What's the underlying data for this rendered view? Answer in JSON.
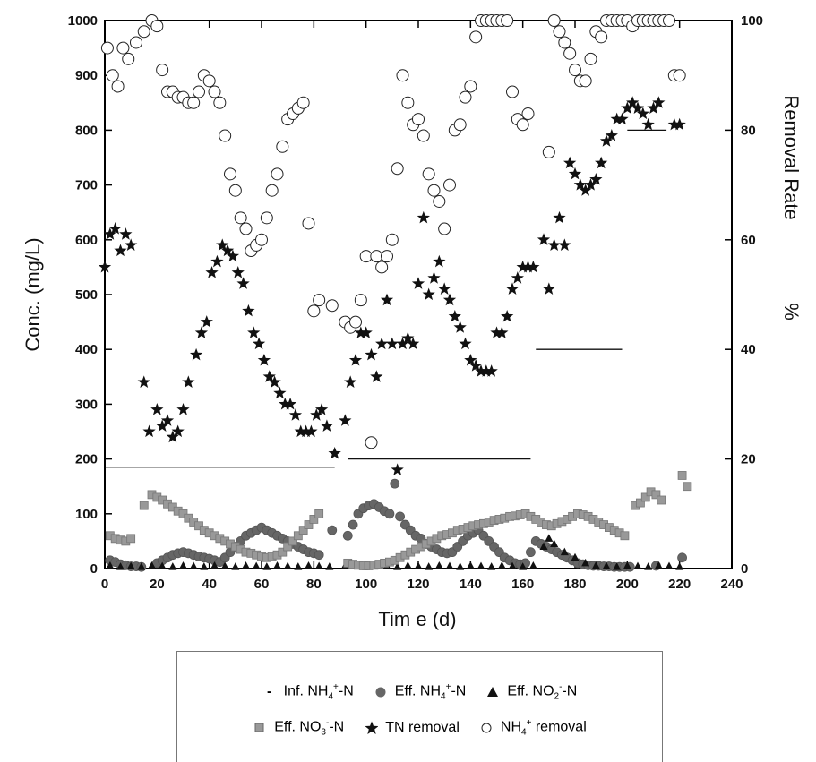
{
  "chart_data": {
    "type": "scatter",
    "xlabel": "Tim e (d)",
    "ylabel_left": "Conc. (mg/L)",
    "ylabel_right_main": "Removal Rate",
    "ylabel_right_unit": "%",
    "xlim": [
      0,
      240
    ],
    "ylim_left": [
      0,
      1000
    ],
    "ylim_right": [
      0,
      100
    ],
    "x_ticks": [
      "0",
      "20",
      "40",
      "60",
      "80",
      "100",
      "120",
      "140",
      "160",
      "180",
      "200",
      "220",
      "240"
    ],
    "y_ticks_left": [
      "0",
      "100",
      "200",
      "300",
      "400",
      "500",
      "600",
      "700",
      "800",
      "900",
      "1000"
    ],
    "y_ticks_right": [
      "0",
      "20",
      "40",
      "60",
      "80",
      "100"
    ],
    "legend": {
      "row1": [
        {
          "symbol": "-",
          "label_pre": "Inf. NH",
          "sub": "4",
          "sup": "+",
          "label_post": "-N"
        },
        {
          "symbol": "●",
          "label_pre": "Eff. NH",
          "sub": "4",
          "sup": "+",
          "label_post": "-N"
        },
        {
          "symbol": "▲",
          "label_pre": "Eff. NO",
          "sub": "2",
          "sup": "-",
          "label_post": "-N"
        }
      ],
      "row2": [
        {
          "symbol": "■",
          "label_pre": "Eff. NO",
          "sub": "3",
          "sup": "-",
          "label_post": "-N"
        },
        {
          "symbol": "★",
          "label_pre": "TN removal",
          "sub": "",
          "sup": "",
          "label_post": ""
        },
        {
          "symbol": "○",
          "label_pre": "NH",
          "sub": "4",
          "sup": "+",
          "label_post": " removal"
        }
      ]
    },
    "series": [
      {
        "name": "Inf. NH4+-N",
        "axis": "left",
        "style": "segments",
        "segments": [
          {
            "x0": 0,
            "x1": 88,
            "y": 185
          },
          {
            "x0": 93,
            "x1": 163,
            "y": 200
          },
          {
            "x0": 165,
            "x1": 198,
            "y": 400
          },
          {
            "x0": 200,
            "x1": 215,
            "y": 800
          }
        ]
      },
      {
        "name": "Eff. NH4+-N",
        "axis": "left",
        "style": "filled-circle",
        "x": [
          2,
          4,
          6,
          8,
          10,
          12,
          14,
          20,
          22,
          24,
          26,
          28,
          30,
          32,
          34,
          36,
          38,
          40,
          42,
          44,
          46,
          48,
          50,
          52,
          54,
          56,
          58,
          60,
          62,
          64,
          66,
          68,
          70,
          72,
          74,
          76,
          78,
          80,
          82,
          87,
          93,
          95,
          97,
          99,
          101,
          103,
          105,
          107,
          109,
          111,
          113,
          115,
          117,
          119,
          121,
          123,
          125,
          127,
          129,
          131,
          133,
          135,
          137,
          139,
          141,
          143,
          145,
          147,
          149,
          151,
          153,
          155,
          157,
          159,
          161,
          163,
          165,
          167,
          169,
          171,
          173,
          175,
          177,
          179,
          181,
          183,
          185,
          187,
          189,
          191,
          193,
          195,
          197,
          199,
          201,
          211,
          221
        ],
        "y": [
          15,
          12,
          8,
          6,
          4,
          4,
          3,
          10,
          15,
          20,
          25,
          28,
          30,
          28,
          25,
          22,
          20,
          18,
          15,
          12,
          20,
          30,
          40,
          50,
          60,
          65,
          70,
          75,
          70,
          65,
          60,
          55,
          50,
          45,
          40,
          35,
          30,
          28,
          25,
          70,
          60,
          80,
          100,
          110,
          115,
          118,
          112,
          105,
          100,
          155,
          95,
          80,
          70,
          60,
          55,
          45,
          40,
          35,
          30,
          28,
          30,
          40,
          50,
          60,
          65,
          70,
          60,
          50,
          40,
          30,
          20,
          15,
          10,
          8,
          10,
          30,
          50,
          45,
          40,
          35,
          30,
          25,
          20,
          15,
          10,
          8,
          6,
          5,
          5,
          4,
          4,
          3,
          3,
          3,
          3,
          5,
          20
        ]
      },
      {
        "name": "Eff. NO2--N",
        "axis": "left",
        "style": "filled-triangle",
        "x": [
          2,
          6,
          10,
          14,
          18,
          22,
          26,
          30,
          34,
          38,
          42,
          46,
          50,
          54,
          58,
          62,
          66,
          70,
          74,
          78,
          82,
          86,
          92,
          96,
          100,
          104,
          108,
          112,
          116,
          120,
          124,
          128,
          132,
          136,
          140,
          144,
          148,
          152,
          156,
          160,
          164,
          168,
          170,
          172,
          176,
          180,
          184,
          188,
          192,
          196,
          200,
          204,
          208,
          212,
          216,
          220
        ],
        "y": [
          5,
          3,
          4,
          3,
          5,
          4,
          3,
          5,
          4,
          3,
          5,
          4,
          3,
          5,
          4,
          3,
          5,
          4,
          3,
          5,
          4,
          3,
          5,
          4,
          3,
          5,
          4,
          3,
          5,
          4,
          3,
          5,
          4,
          3,
          5,
          4,
          3,
          5,
          4,
          3,
          5,
          40,
          55,
          45,
          30,
          20,
          10,
          5,
          4,
          3,
          5,
          4,
          3,
          5,
          4,
          3
        ]
      },
      {
        "name": "Eff. NO3--N",
        "axis": "left",
        "style": "filled-square",
        "x": [
          2,
          4,
          6,
          8,
          10,
          15,
          18,
          20,
          22,
          24,
          26,
          28,
          30,
          32,
          34,
          36,
          38,
          40,
          42,
          44,
          46,
          48,
          50,
          52,
          54,
          56,
          58,
          60,
          62,
          64,
          66,
          68,
          70,
          72,
          74,
          76,
          78,
          80,
          82,
          93,
          95,
          97,
          99,
          101,
          103,
          105,
          107,
          109,
          111,
          113,
          115,
          117,
          119,
          121,
          123,
          125,
          127,
          129,
          131,
          133,
          135,
          137,
          139,
          141,
          143,
          145,
          147,
          149,
          151,
          153,
          155,
          157,
          159,
          161,
          163,
          165,
          167,
          169,
          171,
          173,
          175,
          177,
          179,
          181,
          183,
          185,
          187,
          189,
          191,
          193,
          195,
          197,
          199,
          203,
          205,
          207,
          209,
          211,
          213,
          221,
          223
        ],
        "y": [
          60,
          55,
          52,
          50,
          55,
          115,
          135,
          130,
          125,
          118,
          112,
          105,
          100,
          92,
          85,
          78,
          70,
          65,
          60,
          55,
          50,
          45,
          40,
          35,
          30,
          28,
          25,
          22,
          20,
          22,
          25,
          30,
          40,
          50,
          60,
          70,
          80,
          90,
          100,
          10,
          8,
          6,
          5,
          5,
          6,
          8,
          10,
          12,
          15,
          20,
          25,
          30,
          35,
          40,
          45,
          50,
          55,
          60,
          62,
          65,
          70,
          72,
          75,
          78,
          80,
          82,
          85,
          88,
          90,
          92,
          95,
          96,
          98,
          100,
          95,
          90,
          85,
          80,
          78,
          82,
          86,
          90,
          95,
          100,
          98,
          95,
          90,
          85,
          80,
          75,
          70,
          65,
          60,
          115,
          120,
          130,
          140,
          135,
          125,
          170,
          150
        ]
      },
      {
        "name": "TN removal",
        "axis": "right",
        "style": "star",
        "x": [
          0,
          2,
          4,
          6,
          8,
          10,
          15,
          17,
          20,
          22,
          24,
          26,
          28,
          30,
          32,
          35,
          37,
          39,
          41,
          43,
          45,
          47,
          49,
          51,
          53,
          55,
          57,
          59,
          61,
          63,
          65,
          67,
          69,
          71,
          73,
          75,
          77,
          79,
          81,
          83,
          85,
          88,
          92,
          94,
          96,
          98,
          100,
          102,
          104,
          106,
          108,
          110,
          112,
          114,
          116,
          118,
          120,
          122,
          124,
          126,
          128,
          130,
          132,
          134,
          136,
          138,
          140,
          142,
          144,
          146,
          148,
          150,
          152,
          154,
          156,
          158,
          160,
          162,
          164,
          168,
          170,
          172,
          174,
          176,
          178,
          180,
          182,
          184,
          186,
          188,
          190,
          192,
          194,
          196,
          198,
          200,
          202,
          204,
          206,
          208,
          210,
          212,
          218,
          220
        ],
        "y": [
          55,
          61,
          62,
          58,
          61,
          59,
          34,
          25,
          29,
          26,
          27,
          24,
          25,
          29,
          34,
          39,
          43,
          45,
          54,
          56,
          59,
          58,
          57,
          54,
          52,
          47,
          43,
          41,
          38,
          35,
          34,
          32,
          30,
          30,
          28,
          25,
          25,
          25,
          28,
          29,
          26,
          21,
          27,
          34,
          38,
          43,
          43,
          39,
          35,
          41,
          49,
          41,
          18,
          41,
          42,
          41,
          52,
          64,
          50,
          53,
          56,
          51,
          49,
          46,
          44,
          41,
          38,
          37,
          36,
          36,
          36,
          43,
          43,
          46,
          51,
          53,
          55,
          55,
          55,
          60,
          51,
          59,
          64,
          59,
          74,
          72,
          70,
          69,
          70,
          71,
          74,
          78,
          79,
          82,
          82,
          84,
          85,
          84,
          83,
          81,
          84,
          85,
          81,
          81
        ]
      },
      {
        "name": "NH4+ removal",
        "axis": "right",
        "style": "open-circle",
        "x": [
          1,
          3,
          5,
          7,
          9,
          12,
          15,
          18,
          20,
          22,
          24,
          26,
          28,
          30,
          32,
          34,
          36,
          38,
          40,
          42,
          44,
          46,
          48,
          50,
          52,
          54,
          56,
          58,
          60,
          62,
          64,
          66,
          68,
          70,
          72,
          74,
          76,
          78,
          80,
          82,
          87,
          92,
          94,
          96,
          98,
          100,
          102,
          104,
          106,
          108,
          110,
          112,
          114,
          116,
          118,
          120,
          122,
          124,
          126,
          128,
          130,
          132,
          134,
          136,
          138,
          140,
          142,
          144,
          146,
          148,
          150,
          152,
          154,
          156,
          158,
          160,
          162,
          170,
          172,
          174,
          176,
          178,
          180,
          182,
          184,
          186,
          188,
          190,
          192,
          194,
          196,
          198,
          200,
          202,
          204,
          206,
          208,
          210,
          212,
          214,
          216,
          218,
          220
        ],
        "y": [
          95,
          90,
          88,
          95,
          93,
          96,
          98,
          100,
          99,
          91,
          87,
          87,
          86,
          86,
          85,
          85,
          87,
          90,
          89,
          87,
          85,
          79,
          72,
          69,
          64,
          62,
          58,
          59,
          60,
          64,
          69,
          72,
          77,
          82,
          83,
          84,
          85,
          63,
          47,
          49,
          48,
          45,
          44,
          45,
          49,
          57,
          23,
          57,
          55,
          57,
          60,
          73,
          90,
          85,
          81,
          82,
          79,
          72,
          69,
          67,
          62,
          70,
          80,
          81,
          86,
          88,
          97,
          100,
          100,
          100,
          100,
          100,
          100,
          87,
          82,
          81,
          83,
          76,
          100,
          98,
          96,
          94,
          91,
          89,
          89,
          93,
          98,
          97,
          100,
          100,
          100,
          100,
          100,
          99,
          100,
          100,
          100,
          100,
          100,
          100,
          100,
          90,
          90
        ]
      }
    ]
  }
}
